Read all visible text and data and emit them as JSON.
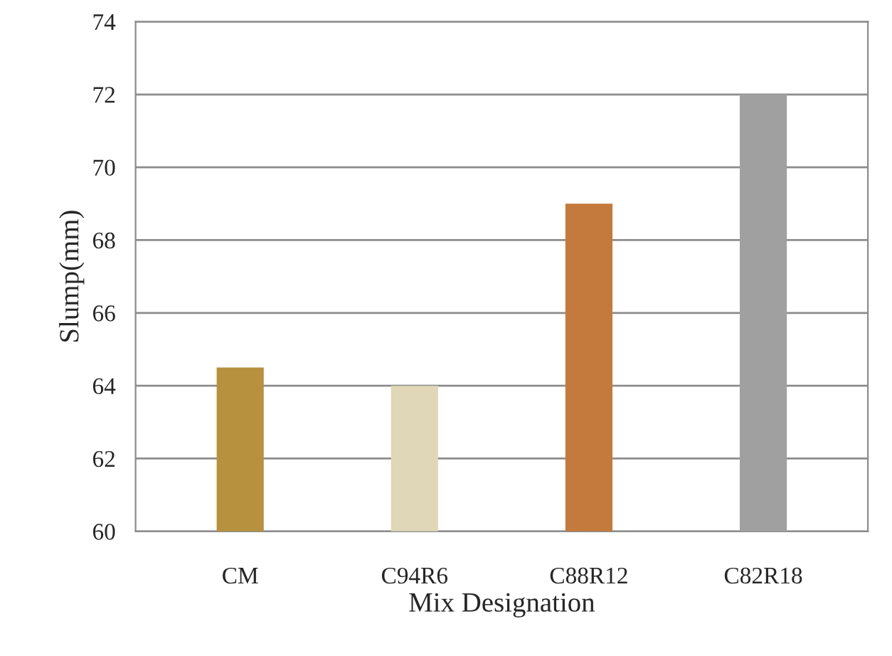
{
  "chart_data": {
    "type": "bar",
    "xlabel": "Mix Designation",
    "ylabel": "Slump(mm)",
    "categories": [
      "CM",
      "C94R6",
      "C88R12",
      "C82R18"
    ],
    "values": [
      64.5,
      64,
      69,
      72
    ],
    "colors": [
      "#b8913f",
      "#e0d6b8",
      "#c47a3c",
      "#a0a0a0"
    ],
    "ylim": [
      60,
      74
    ],
    "yticks": [
      60,
      62,
      64,
      66,
      68,
      70,
      72,
      74
    ],
    "grid": "y",
    "legend": false
  }
}
